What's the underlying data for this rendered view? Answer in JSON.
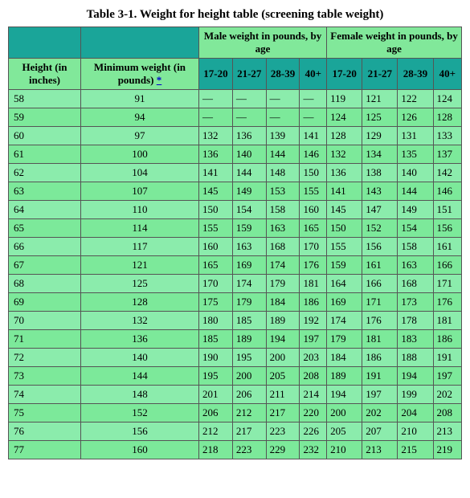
{
  "title": "Table 3-1. Weight for height table (screening table weight)",
  "group_headers": {
    "male": "Male weight in pounds, by age",
    "female": "Female weight in pounds, by age"
  },
  "col_headers": {
    "height": "Height (in inches)",
    "min_weight": "Minimum weight (in pounds) ",
    "footnote_symbol": "*",
    "ages": [
      "17-20",
      "21-27",
      "28-39",
      "40+"
    ]
  },
  "rows": [
    {
      "h": "58",
      "min": "91",
      "m": [
        "—",
        "—",
        "—",
        "—"
      ],
      "f": [
        "119",
        "121",
        "122",
        "124"
      ]
    },
    {
      "h": "59",
      "min": "94",
      "m": [
        "—",
        "—",
        "—",
        "—"
      ],
      "f": [
        "124",
        "125",
        "126",
        "128"
      ]
    },
    {
      "h": "60",
      "min": "97",
      "m": [
        "132",
        "136",
        "139",
        "141"
      ],
      "f": [
        "128",
        "129",
        "131",
        "133"
      ]
    },
    {
      "h": "61",
      "min": "100",
      "m": [
        "136",
        "140",
        "144",
        "146"
      ],
      "f": [
        "132",
        "134",
        "135",
        "137"
      ]
    },
    {
      "h": "62",
      "min": "104",
      "m": [
        "141",
        "144",
        "148",
        "150"
      ],
      "f": [
        "136",
        "138",
        "140",
        "142"
      ]
    },
    {
      "h": "63",
      "min": "107",
      "m": [
        "145",
        "149",
        "153",
        "155"
      ],
      "f": [
        "141",
        "143",
        "144",
        "146"
      ]
    },
    {
      "h": "64",
      "min": "110",
      "m": [
        "150",
        "154",
        "158",
        "160"
      ],
      "f": [
        "145",
        "147",
        "149",
        "151"
      ]
    },
    {
      "h": "65",
      "min": "114",
      "m": [
        "155",
        "159",
        "163",
        "165"
      ],
      "f": [
        "150",
        "152",
        "154",
        "156"
      ]
    },
    {
      "h": "66",
      "min": "117",
      "m": [
        "160",
        "163",
        "168",
        "170"
      ],
      "f": [
        "155",
        "156",
        "158",
        "161"
      ]
    },
    {
      "h": "67",
      "min": "121",
      "m": [
        "165",
        "169",
        "174",
        "176"
      ],
      "f": [
        "159",
        "161",
        "163",
        "166"
      ]
    },
    {
      "h": "68",
      "min": "125",
      "m": [
        "170",
        "174",
        "179",
        "181"
      ],
      "f": [
        "164",
        "166",
        "168",
        "171"
      ]
    },
    {
      "h": "69",
      "min": "128",
      "m": [
        "175",
        "179",
        "184",
        "186"
      ],
      "f": [
        "169",
        "171",
        "173",
        "176"
      ]
    },
    {
      "h": "70",
      "min": "132",
      "m": [
        "180",
        "185",
        "189",
        "192"
      ],
      "f": [
        "174",
        "176",
        "178",
        "181"
      ]
    },
    {
      "h": "71",
      "min": "136",
      "m": [
        "185",
        "189",
        "194",
        "197"
      ],
      "f": [
        "179",
        "181",
        "183",
        "186"
      ]
    },
    {
      "h": "72",
      "min": "140",
      "m": [
        "190",
        "195",
        "200",
        "203"
      ],
      "f": [
        "184",
        "186",
        "188",
        "191"
      ]
    },
    {
      "h": "73",
      "min": "144",
      "m": [
        "195",
        "200",
        "205",
        "208"
      ],
      "f": [
        "189",
        "191",
        "194",
        "197"
      ]
    },
    {
      "h": "74",
      "min": "148",
      "m": [
        "201",
        "206",
        "211",
        "214"
      ],
      "f": [
        "194",
        "197",
        "199",
        "202"
      ]
    },
    {
      "h": "75",
      "min": "152",
      "m": [
        "206",
        "212",
        "217",
        "220"
      ],
      "f": [
        "200",
        "202",
        "204",
        "208"
      ]
    },
    {
      "h": "76",
      "min": "156",
      "m": [
        "212",
        "217",
        "223",
        "226"
      ],
      "f": [
        "205",
        "207",
        "210",
        "213"
      ]
    },
    {
      "h": "77",
      "min": "160",
      "m": [
        "218",
        "223",
        "229",
        "232"
      ],
      "f": [
        "210",
        "213",
        "215",
        "219"
      ]
    }
  ],
  "colors": {
    "header_bg": "#1aa599",
    "body_bg_odd": "#8becac",
    "body_bg_even": "#7ce99a",
    "group_bg": "#81e89a"
  }
}
